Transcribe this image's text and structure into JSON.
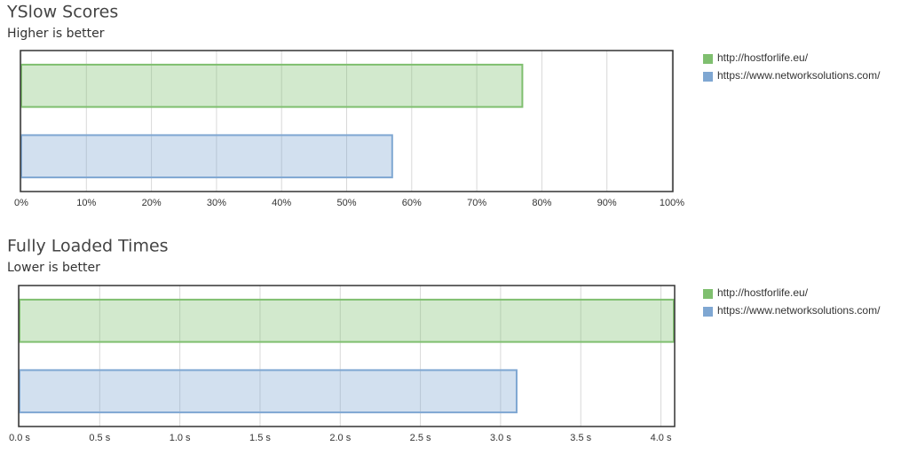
{
  "chart_data": [
    {
      "type": "bar",
      "orientation": "horizontal",
      "title": "YSlow Scores",
      "subtitle": "Higher is better",
      "series": [
        {
          "name": "http://hostforlife.eu/",
          "color": "#7fbf6f",
          "values": [
            77
          ]
        },
        {
          "name": "https://www.networksolutions.com/",
          "color": "#7fa7d2",
          "values": [
            57
          ]
        }
      ],
      "xlim": [
        0,
        100
      ],
      "xticks": [
        {
          "value": 0,
          "label": "0%"
        },
        {
          "value": 10,
          "label": "10%"
        },
        {
          "value": 20,
          "label": "20%"
        },
        {
          "value": 30,
          "label": "30%"
        },
        {
          "value": 40,
          "label": "40%"
        },
        {
          "value": 50,
          "label": "50%"
        },
        {
          "value": 60,
          "label": "60%"
        },
        {
          "value": 70,
          "label": "70%"
        },
        {
          "value": 80,
          "label": "80%"
        },
        {
          "value": 90,
          "label": "90%"
        },
        {
          "value": 100,
          "label": "100%"
        }
      ],
      "grid": true,
      "legend": "right"
    },
    {
      "type": "bar",
      "orientation": "horizontal",
      "title": "Fully Loaded Times",
      "subtitle": "Lower is better",
      "series": [
        {
          "name": "http://hostforlife.eu/",
          "color": "#7fbf6f",
          "values": [
            4.08
          ]
        },
        {
          "name": "https://www.networksolutions.com/",
          "color": "#7fa7d2",
          "values": [
            3.1
          ]
        }
      ],
      "xlim": [
        0,
        4.08
      ],
      "xticks": [
        {
          "value": 0,
          "label": "0.0 s"
        },
        {
          "value": 0.5,
          "label": "0.5 s"
        },
        {
          "value": 1,
          "label": "1.0 s"
        },
        {
          "value": 1.5,
          "label": "1.5 s"
        },
        {
          "value": 2,
          "label": "2.0 s"
        },
        {
          "value": 2.5,
          "label": "2.5 s"
        },
        {
          "value": 3,
          "label": "3.0 s"
        },
        {
          "value": 3.5,
          "label": "3.5 s"
        },
        {
          "value": 4,
          "label": "4.0 s"
        }
      ],
      "grid": true,
      "legend": "right"
    }
  ]
}
